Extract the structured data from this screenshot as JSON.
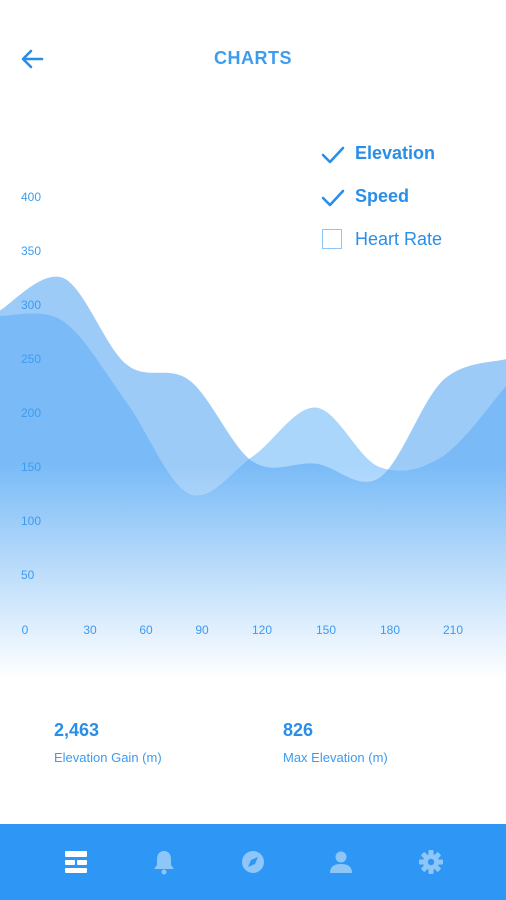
{
  "header": {
    "title": "CHARTS",
    "back_icon": "arrow-left-icon"
  },
  "legend": [
    {
      "label": "Elevation",
      "checked": true
    },
    {
      "label": "Speed",
      "checked": true
    },
    {
      "label": "Heart Rate",
      "checked": false
    }
  ],
  "chart_data": {
    "type": "area",
    "x": [
      0,
      30,
      60,
      90,
      120,
      150,
      180,
      210,
      240
    ],
    "x_ticks": [
      "0",
      "30",
      "60",
      "90",
      "120",
      "150",
      "180",
      "210"
    ],
    "y_ticks": [
      "0",
      "50",
      "100",
      "150",
      "200",
      "250",
      "300",
      "350",
      "400"
    ],
    "xlim": [
      0,
      240
    ],
    "ylim": [
      0,
      400
    ],
    "grid": false,
    "legend_position": "top-right",
    "series": [
      {
        "name": "Elevation",
        "values": [
          290,
          285,
          210,
          125,
          160,
          205,
          150,
          160,
          225
        ],
        "color": "#8ec8fb"
      },
      {
        "name": "Speed",
        "values": [
          295,
          325,
          245,
          230,
          155,
          153,
          140,
          230,
          250
        ],
        "color": "#5aa9f4"
      }
    ]
  },
  "stats": [
    {
      "value": "2,463",
      "label": "Elevation Gain (m)"
    },
    {
      "value": "826",
      "label": "Max Elevation (m)"
    }
  ],
  "tabbar": {
    "background": "#2e97f5",
    "items": [
      {
        "icon": "dashboard-icon",
        "active": true
      },
      {
        "icon": "bell-icon",
        "active": false
      },
      {
        "icon": "compass-icon",
        "active": false
      },
      {
        "icon": "user-icon",
        "active": false
      },
      {
        "icon": "gear-icon",
        "active": false
      }
    ]
  }
}
